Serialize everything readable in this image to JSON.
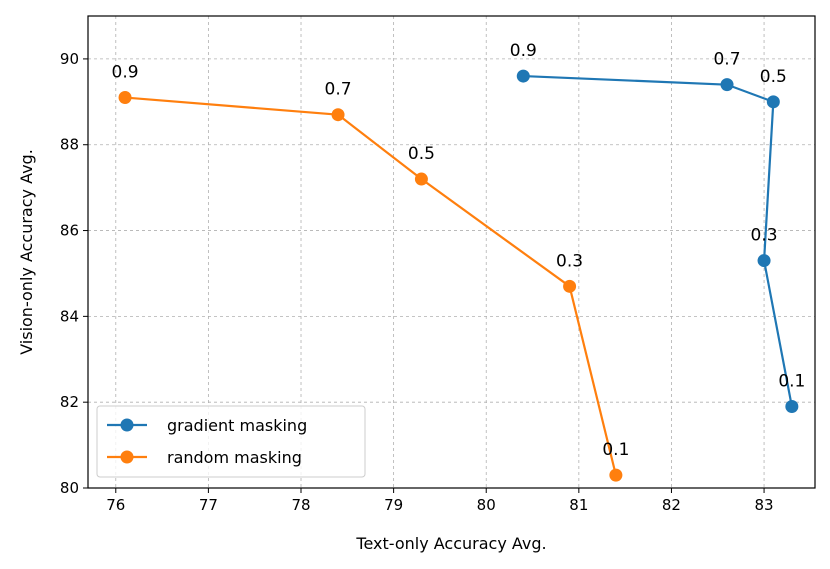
{
  "chart_data": {
    "type": "line",
    "xlabel": "Text-only Accuracy Avg.",
    "ylabel": "Vision-only Accuracy Avg.",
    "xlim": [
      75.7,
      83.55
    ],
    "ylim": [
      80,
      91
    ],
    "xticks": [
      76,
      77,
      78,
      79,
      80,
      81,
      82,
      83
    ],
    "yticks": [
      80,
      82,
      84,
      86,
      88,
      90
    ],
    "grid": true,
    "legend_position": "lower-left",
    "series": [
      {
        "name": "gradient masking",
        "color": "#1f77b4",
        "points": [
          {
            "x": 80.4,
            "y": 89.6,
            "label": "0.9"
          },
          {
            "x": 82.6,
            "y": 89.4,
            "label": "0.7"
          },
          {
            "x": 83.1,
            "y": 89.0,
            "label": "0.5"
          },
          {
            "x": 83.0,
            "y": 85.3,
            "label": "0.3"
          },
          {
            "x": 83.3,
            "y": 81.9,
            "label": "0.1"
          }
        ]
      },
      {
        "name": "random masking",
        "color": "#ff7f0e",
        "points": [
          {
            "x": 76.1,
            "y": 89.1,
            "label": "0.9"
          },
          {
            "x": 78.4,
            "y": 88.7,
            "label": "0.7"
          },
          {
            "x": 79.3,
            "y": 87.2,
            "label": "0.5"
          },
          {
            "x": 80.9,
            "y": 84.7,
            "label": "0.3"
          },
          {
            "x": 81.4,
            "y": 80.3,
            "label": "0.1"
          }
        ]
      }
    ]
  }
}
